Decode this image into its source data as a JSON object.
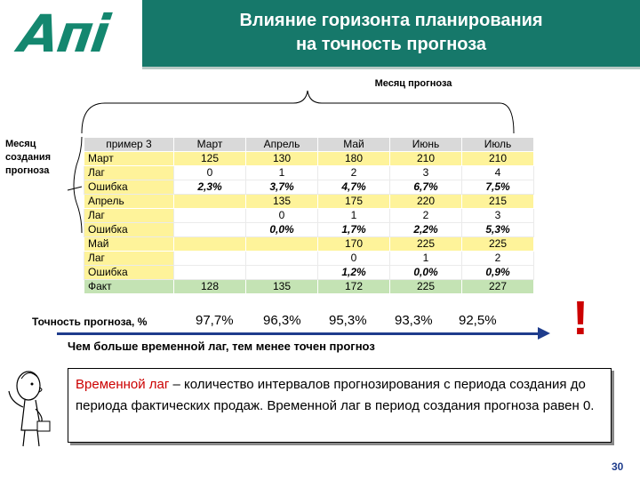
{
  "logo": {
    "text": "Апі",
    "color": "#14876f"
  },
  "header": {
    "title": "Влияние горизонта планирования\nна точность прогноза",
    "bg": "#16786a"
  },
  "top_label": "Месяц прогноза",
  "left_label": "Месяц\nсоздания\nпрогноза",
  "table": {
    "columns": [
      "пример 3",
      "Март",
      "Апрель",
      "Май",
      "Июнь",
      "Июль"
    ],
    "rows": [
      {
        "label": "Март",
        "values": [
          "125",
          "130",
          "180",
          "210",
          "210"
        ],
        "kind": "yellow"
      },
      {
        "label": "Лаг",
        "values": [
          "0",
          "1",
          "2",
          "3",
          "4"
        ],
        "kind": "white"
      },
      {
        "label": "Ошибка",
        "values": [
          "2,3%",
          "3,7%",
          "4,7%",
          "6,7%",
          "7,5%"
        ],
        "kind": "white err"
      },
      {
        "label": "Апрель",
        "values": [
          "",
          "135",
          "175",
          "220",
          "215"
        ],
        "kind": "yellow"
      },
      {
        "label": "Лаг",
        "values": [
          "",
          "0",
          "1",
          "2",
          "3"
        ],
        "kind": "white"
      },
      {
        "label": "Ошибка",
        "values": [
          "",
          "0,0%",
          "1,7%",
          "2,2%",
          "5,3%"
        ],
        "kind": "white err"
      },
      {
        "label": "Май",
        "values": [
          "",
          "",
          "170",
          "225",
          "225"
        ],
        "kind": "yellow"
      },
      {
        "label": "Лаг",
        "values": [
          "",
          "",
          "0",
          "1",
          "2"
        ],
        "kind": "white"
      },
      {
        "label": "Ошибка",
        "values": [
          "",
          "",
          "1,2%",
          "0,0%",
          "0,9%"
        ],
        "kind": "white err"
      },
      {
        "label": "Факт",
        "values": [
          "128",
          "135",
          "172",
          "225",
          "227"
        ],
        "kind": "green"
      }
    ]
  },
  "accuracy": {
    "label": "Точность прогноза, %",
    "values": [
      "97,7%",
      "96,3%",
      "95,3%",
      "93,3%",
      "92,5%"
    ]
  },
  "exclamation": "!",
  "lag_note": "Чем больше временной лаг, тем менее точен прогноз",
  "definition": {
    "term": "Временной лаг",
    "text": " – количество интервалов прогнозирования с периода создания до периода фактических продаж. Временной лаг в период создания прогноза равен 0."
  },
  "page_number": "30"
}
